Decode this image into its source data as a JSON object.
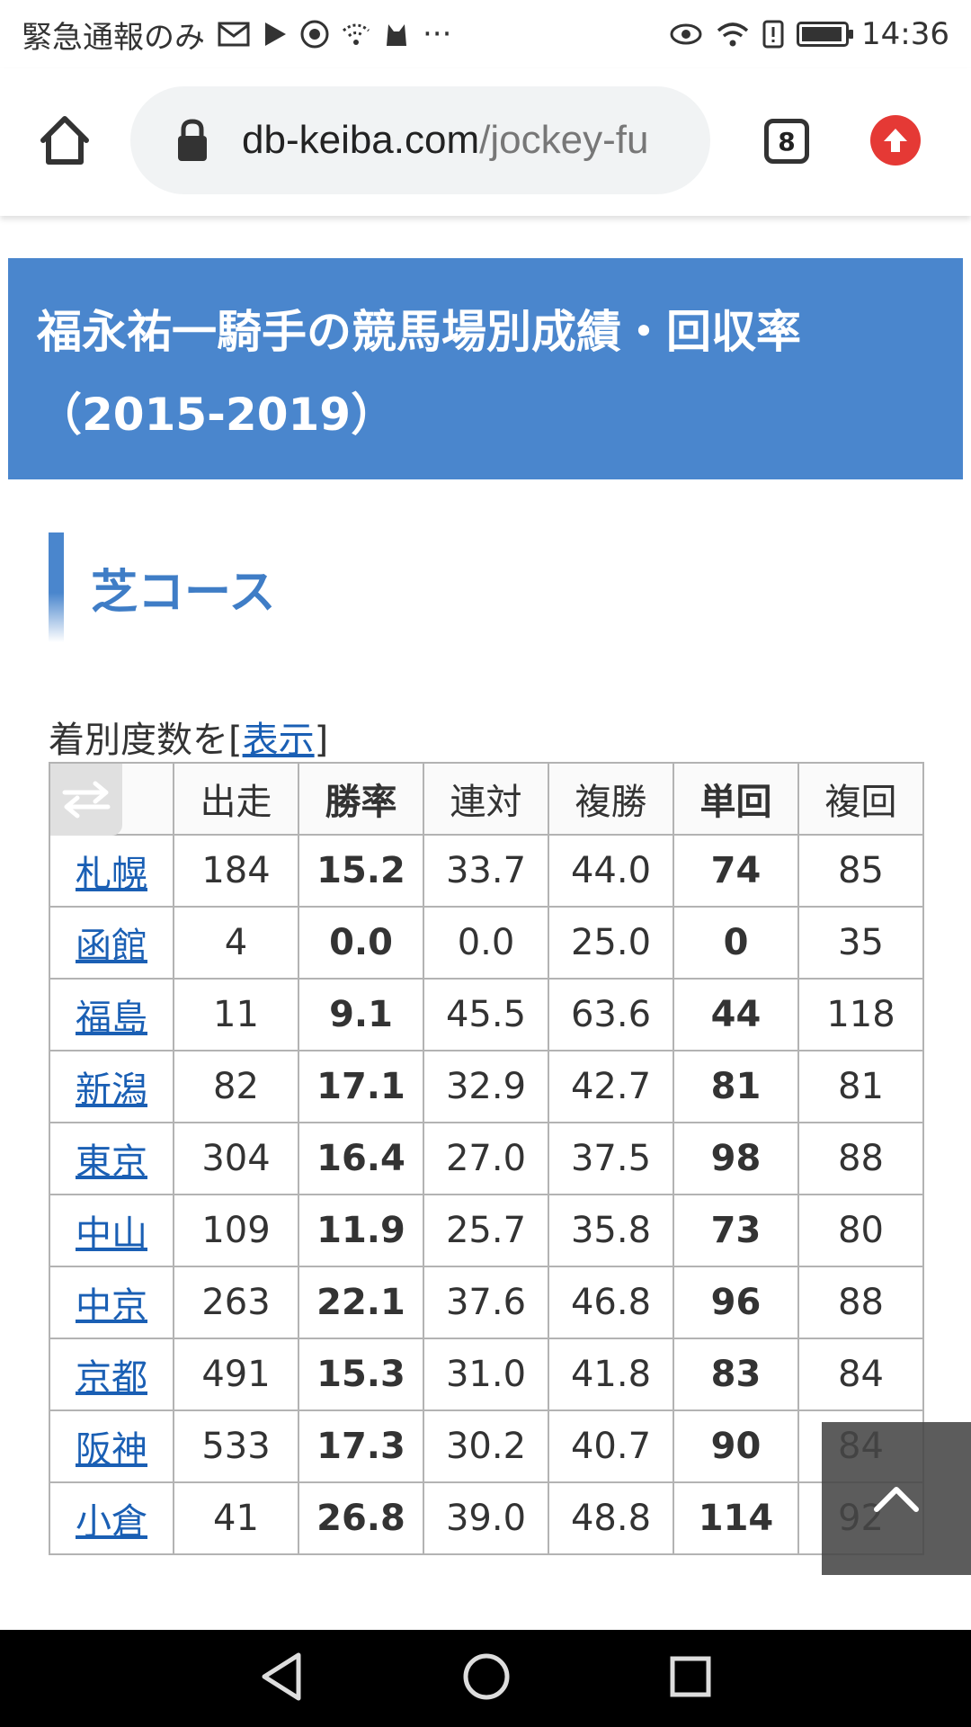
{
  "status_bar": {
    "left_text": "緊急通報のみ",
    "more": "···",
    "time": "14:36",
    "icons": [
      "mail-icon",
      "play-icon",
      "app-icon",
      "wifi-off-icon",
      "cat-icon",
      "eye-icon",
      "wifi-icon",
      "alert-icon",
      "battery-icon"
    ]
  },
  "browser": {
    "url_host": "db-keiba.com",
    "url_path": "/jockey-fu",
    "tab_count": "8"
  },
  "page": {
    "title_line1": "福永祐一騎手の競馬場別成績・回収率",
    "title_line2": "（2015-2019）",
    "section_title": "芝コース",
    "toggle_prefix": "着別度数を[",
    "toggle_link": "表示",
    "toggle_suffix": "]"
  },
  "table": {
    "headers": [
      "出走",
      "勝率",
      "連対",
      "複勝",
      "単回",
      "複回"
    ],
    "rows": [
      {
        "venue": "札幌",
        "values": [
          "184",
          "15.2",
          "33.7",
          "44.0",
          "74",
          "85"
        ]
      },
      {
        "venue": "函館",
        "values": [
          "4",
          "0.0",
          "0.0",
          "25.0",
          "0",
          "35"
        ]
      },
      {
        "venue": "福島",
        "values": [
          "11",
          "9.1",
          "45.5",
          "63.6",
          "44",
          "118"
        ]
      },
      {
        "venue": "新潟",
        "values": [
          "82",
          "17.1",
          "32.9",
          "42.7",
          "81",
          "81"
        ]
      },
      {
        "venue": "東京",
        "values": [
          "304",
          "16.4",
          "27.0",
          "37.5",
          "98",
          "88"
        ]
      },
      {
        "venue": "中山",
        "values": [
          "109",
          "11.9",
          "25.7",
          "35.8",
          "73",
          "80"
        ]
      },
      {
        "venue": "中京",
        "values": [
          "263",
          "22.1",
          "37.6",
          "46.8",
          "96",
          "88"
        ]
      },
      {
        "venue": "京都",
        "values": [
          "491",
          "15.3",
          "31.0",
          "41.8",
          "83",
          "84"
        ]
      },
      {
        "venue": "阪神",
        "values": [
          "533",
          "17.3",
          "30.2",
          "40.7",
          "90",
          "84"
        ]
      },
      {
        "venue": "小倉",
        "values": [
          "41",
          "26.8",
          "39.0",
          "48.8",
          "114",
          "92"
        ]
      }
    ]
  },
  "colors": {
    "title_bg": "#4a86cd",
    "link": "#1a5fb4",
    "update_badge": "#e53935"
  }
}
